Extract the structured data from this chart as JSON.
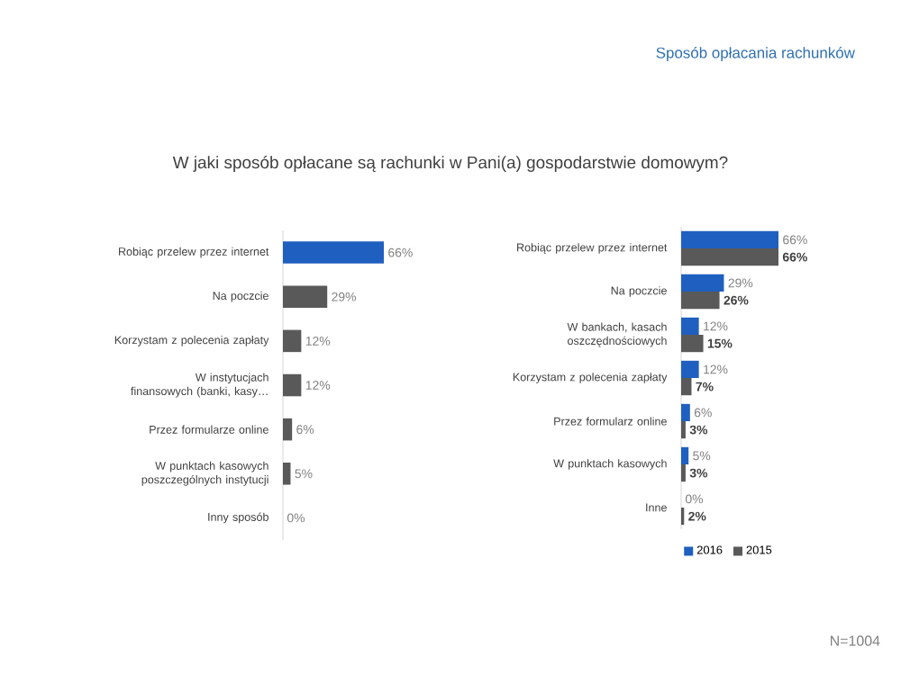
{
  "chart_data": [
    {
      "type": "other",
      "title": "Sposób opłacania rachunków",
      "subtitle": "W jaki sposób opłacane są rachunki w Pani(a) gospodarstwie domowym?",
      "annotations": [
        "N=1004"
      ]
    },
    {
      "type": "bar",
      "orientation": "horizontal",
      "categories": [
        "Robiąc przelew przez internet",
        "Na poczcie",
        "Korzystam z polecenia zapłaty",
        "W instytucjach finansowych (banki, kasy…",
        "Przez formularze online",
        "W punktach kasowych poszczególnych instytucji",
        "Inny sposób"
      ],
      "values": [
        66,
        29,
        12,
        12,
        6,
        5,
        0
      ],
      "colors": [
        "#1f5fbf",
        "#595959",
        "#595959",
        "#595959",
        "#595959",
        "#595959",
        "#595959"
      ],
      "value_labels": [
        "66%",
        "29%",
        "12%",
        "12%",
        "6%",
        "5%",
        "0%"
      ],
      "tick_labels": "y"
    },
    {
      "type": "bar",
      "orientation": "horizontal",
      "categories": [
        "Robiąc przelew przez internet",
        "Na poczcie",
        "W bankach, kasach oszczędnościowych",
        "Korzystam z polecenia zapłaty",
        "Przez formularz online",
        "W punktach kasowych",
        "Inne"
      ],
      "series": [
        {
          "name": "2016",
          "color": "#1f5fbf",
          "values": [
            66,
            29,
            12,
            12,
            6,
            5,
            0
          ],
          "value_labels": [
            "66%",
            "29%",
            "12%",
            "12%",
            "6%",
            "5%",
            "0%"
          ]
        },
        {
          "name": "2015",
          "color": "#595959",
          "values": [
            66,
            26,
            15,
            7,
            3,
            3,
            2
          ],
          "value_labels": [
            "66%",
            "26%",
            "15%",
            "7%",
            "3%",
            "3%",
            "2%"
          ]
        }
      ],
      "legend": "bottom",
      "tick_labels": "y"
    }
  ]
}
